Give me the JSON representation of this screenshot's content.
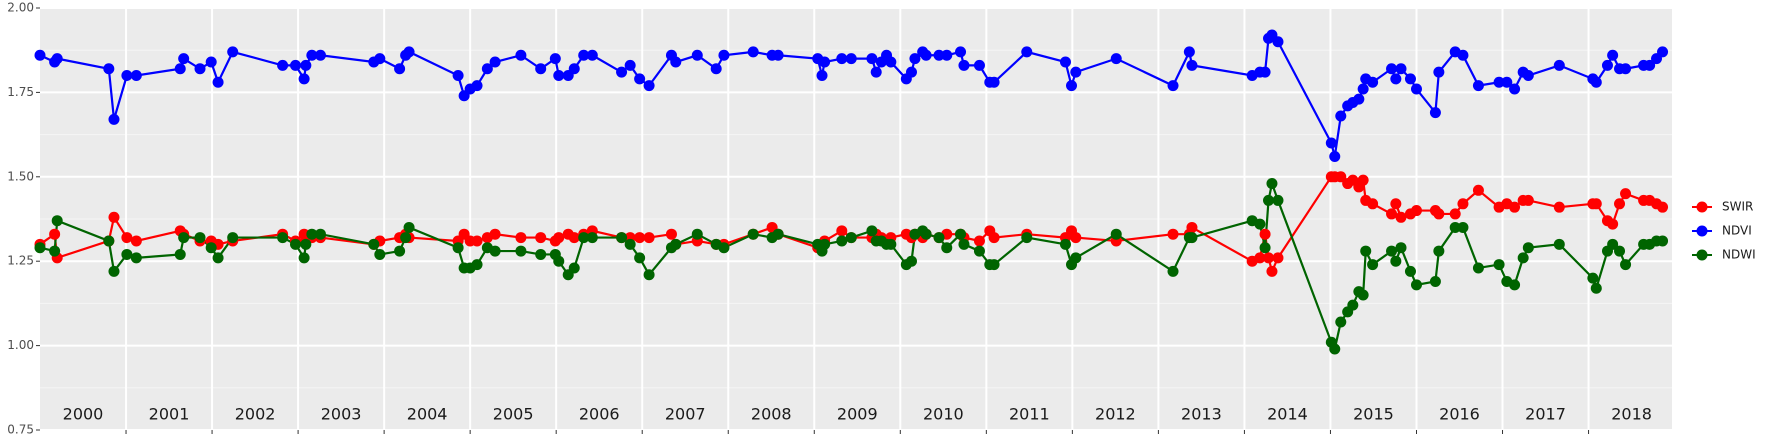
{
  "chart_data": {
    "type": "line",
    "x": [
      2000.0,
      2000.17,
      2000.2,
      2000.8,
      2000.86,
      2001.01,
      2001.12,
      2001.63,
      2001.67,
      2001.86,
      2001.99,
      2002.07,
      2002.24,
      2002.82,
      2002.97,
      2003.07,
      2003.09,
      2003.16,
      2003.26,
      2003.88,
      2003.95,
      2004.18,
      2004.25,
      2004.29,
      2004.86,
      2004.93,
      2005.0,
      2005.08,
      2005.2,
      2005.29,
      2005.59,
      2005.82,
      2005.99,
      2006.03,
      2006.14,
      2006.21,
      2006.32,
      2006.42,
      2006.76,
      2006.86,
      2006.97,
      2007.08,
      2007.34,
      2007.39,
      2007.64,
      2007.86,
      2007.95,
      2008.29,
      2008.51,
      2008.58,
      2009.04,
      2009.09,
      2009.12,
      2009.32,
      2009.43,
      2009.67,
      2009.72,
      2009.78,
      2009.84,
      2009.89,
      2010.07,
      2010.13,
      2010.17,
      2010.26,
      2010.3,
      2010.45,
      2010.54,
      2010.7,
      2010.74,
      2010.92,
      2011.04,
      2011.09,
      2011.47,
      2011.92,
      2011.99,
      2012.04,
      2012.51,
      2013.17,
      2013.36,
      2013.39,
      2014.09,
      2014.18,
      2014.24,
      2014.28,
      2014.32,
      2014.39,
      2015.01,
      2015.05,
      2015.12,
      2015.2,
      2015.26,
      2015.33,
      2015.38,
      2015.41,
      2015.49,
      2015.71,
      2015.76,
      2015.82,
      2015.93,
      2016.0,
      2016.22,
      2016.26,
      2016.45,
      2016.54,
      2016.72,
      2016.96,
      2017.05,
      2017.14,
      2017.24,
      2017.3,
      2017.66,
      2018.05,
      2018.09,
      2018.22,
      2018.28,
      2018.36,
      2018.43,
      2018.64,
      2018.71,
      2018.79,
      2018.86
    ],
    "series": [
      {
        "name": "SWIR",
        "color": "#ff0000",
        "values": [
          1.3,
          1.33,
          1.26,
          1.31,
          1.38,
          1.32,
          1.31,
          1.34,
          1.33,
          1.31,
          1.31,
          1.3,
          1.31,
          1.33,
          1.31,
          1.33,
          1.31,
          1.32,
          1.32,
          1.3,
          1.31,
          1.32,
          1.33,
          1.32,
          1.31,
          1.33,
          1.31,
          1.31,
          1.32,
          1.33,
          1.32,
          1.32,
          1.31,
          1.32,
          1.33,
          1.32,
          1.33,
          1.34,
          1.32,
          1.32,
          1.32,
          1.32,
          1.33,
          1.3,
          1.31,
          1.3,
          1.3,
          1.33,
          1.35,
          1.33,
          1.29,
          1.3,
          1.31,
          1.34,
          1.32,
          1.32,
          1.33,
          1.32,
          1.31,
          1.32,
          1.33,
          1.32,
          1.33,
          1.32,
          1.33,
          1.32,
          1.33,
          1.33,
          1.32,
          1.31,
          1.34,
          1.32,
          1.33,
          1.32,
          1.34,
          1.32,
          1.31,
          1.33,
          1.33,
          1.35,
          1.25,
          1.26,
          1.33,
          1.26,
          1.22,
          1.26,
          1.5,
          1.5,
          1.5,
          1.48,
          1.49,
          1.47,
          1.49,
          1.43,
          1.42,
          1.39,
          1.42,
          1.38,
          1.39,
          1.4,
          1.4,
          1.39,
          1.39,
          1.42,
          1.46,
          1.41,
          1.42,
          1.41,
          1.43,
          1.43,
          1.41,
          1.42,
          1.42,
          1.37,
          1.36,
          1.42,
          1.45,
          1.43,
          1.43,
          1.42,
          1.41
        ]
      },
      {
        "name": "NDVI",
        "color": "#0000ff",
        "values": [
          1.86,
          1.84,
          1.85,
          1.82,
          1.67,
          1.8,
          1.8,
          1.82,
          1.85,
          1.82,
          1.84,
          1.78,
          1.87,
          1.83,
          1.83,
          1.79,
          1.83,
          1.86,
          1.86,
          1.84,
          1.85,
          1.82,
          1.86,
          1.87,
          1.8,
          1.74,
          1.76,
          1.77,
          1.82,
          1.84,
          1.86,
          1.82,
          1.85,
          1.8,
          1.8,
          1.82,
          1.86,
          1.86,
          1.81,
          1.83,
          1.79,
          1.77,
          1.86,
          1.84,
          1.86,
          1.82,
          1.86,
          1.87,
          1.86,
          1.86,
          1.85,
          1.8,
          1.84,
          1.85,
          1.85,
          1.85,
          1.81,
          1.84,
          1.86,
          1.84,
          1.79,
          1.81,
          1.85,
          1.87,
          1.86,
          1.86,
          1.86,
          1.87,
          1.83,
          1.83,
          1.78,
          1.78,
          1.87,
          1.84,
          1.77,
          1.81,
          1.85,
          1.77,
          1.87,
          1.83,
          1.8,
          1.81,
          1.81,
          1.91,
          1.92,
          1.9,
          1.6,
          1.56,
          1.68,
          1.71,
          1.72,
          1.73,
          1.76,
          1.79,
          1.78,
          1.82,
          1.79,
          1.82,
          1.79,
          1.76,
          1.69,
          1.81,
          1.87,
          1.86,
          1.77,
          1.78,
          1.78,
          1.76,
          1.81,
          1.8,
          1.83,
          1.79,
          1.78,
          1.83,
          1.86,
          1.82,
          1.82,
          1.83,
          1.83,
          1.85,
          1.87
        ]
      },
      {
        "name": "NDWI",
        "color": "#006400",
        "values": [
          1.29,
          1.28,
          1.37,
          1.31,
          1.22,
          1.27,
          1.26,
          1.27,
          1.32,
          1.32,
          1.29,
          1.26,
          1.32,
          1.32,
          1.3,
          1.26,
          1.3,
          1.33,
          1.33,
          1.3,
          1.27,
          1.28,
          1.32,
          1.35,
          1.29,
          1.23,
          1.23,
          1.24,
          1.29,
          1.28,
          1.28,
          1.27,
          1.27,
          1.25,
          1.21,
          1.23,
          1.32,
          1.32,
          1.32,
          1.3,
          1.26,
          1.21,
          1.29,
          1.3,
          1.33,
          1.3,
          1.29,
          1.33,
          1.32,
          1.33,
          1.3,
          1.28,
          1.3,
          1.31,
          1.32,
          1.34,
          1.31,
          1.31,
          1.3,
          1.3,
          1.24,
          1.25,
          1.33,
          1.34,
          1.33,
          1.32,
          1.29,
          1.33,
          1.3,
          1.28,
          1.24,
          1.24,
          1.32,
          1.3,
          1.24,
          1.26,
          1.33,
          1.22,
          1.32,
          1.32,
          1.37,
          1.36,
          1.29,
          1.43,
          1.48,
          1.43,
          1.01,
          0.99,
          1.07,
          1.1,
          1.12,
          1.16,
          1.15,
          1.28,
          1.24,
          1.28,
          1.25,
          1.29,
          1.22,
          1.18,
          1.19,
          1.28,
          1.35,
          1.35,
          1.23,
          1.24,
          1.19,
          1.18,
          1.26,
          1.29,
          1.3,
          1.2,
          1.17,
          1.28,
          1.3,
          1.28,
          1.24,
          1.3,
          1.3,
          1.31,
          1.31
        ]
      }
    ],
    "xlim": [
      2000,
      2018.97
    ],
    "xgrid": [
      2001,
      2002,
      2003,
      2004,
      2005,
      2006,
      2007,
      2008,
      2009,
      2010,
      2011,
      2012,
      2013,
      2014,
      2015,
      2016,
      2017,
      2018
    ],
    "annotations": [
      {
        "text": "2000",
        "x": 2000.5
      },
      {
        "text": "2001",
        "x": 2001.5
      },
      {
        "text": "2002",
        "x": 2002.5
      },
      {
        "text": "2003",
        "x": 2003.5
      },
      {
        "text": "2004",
        "x": 2004.5
      },
      {
        "text": "2005",
        "x": 2005.5
      },
      {
        "text": "2006",
        "x": 2006.5
      },
      {
        "text": "2007",
        "x": 2007.5
      },
      {
        "text": "2008",
        "x": 2008.5
      },
      {
        "text": "2009",
        "x": 2009.5
      },
      {
        "text": "2010",
        "x": 2010.5
      },
      {
        "text": "2011",
        "x": 2011.5
      },
      {
        "text": "2012",
        "x": 2012.5
      },
      {
        "text": "2013",
        "x": 2013.5
      },
      {
        "text": "2014",
        "x": 2014.5
      },
      {
        "text": "2015",
        "x": 2015.5
      },
      {
        "text": "2016",
        "x": 2016.5
      },
      {
        "text": "2017",
        "x": 2017.5
      },
      {
        "text": "2018",
        "x": 2018.5
      }
    ],
    "ylim": [
      0.75,
      2.0
    ],
    "yticks": [
      0.75,
      {
        "value": 1.0,
        "label": "1.00"
      },
      1.25,
      {
        "value": 1.5,
        "label": "1.50"
      },
      1.75,
      {
        "value": 2.0,
        "label": "2.00"
      }
    ],
    "yminor": [
      0.875,
      1.125,
      1.375,
      1.625,
      1.875
    ],
    "grid": true,
    "legend": "right"
  }
}
